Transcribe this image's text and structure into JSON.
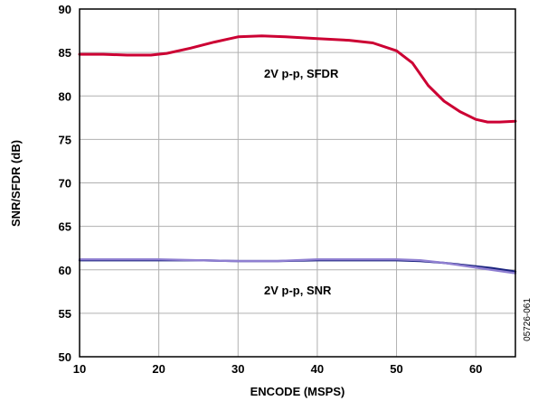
{
  "chart_data": {
    "type": "line",
    "title": "",
    "xlabel": "ENCODE (MSPS)",
    "ylabel": "SNR/SFDR (dB)",
    "xlim": [
      10,
      65
    ],
    "ylim": [
      50,
      90
    ],
    "x_ticks": [
      10,
      20,
      30,
      40,
      50,
      60
    ],
    "y_ticks": [
      50,
      55,
      60,
      65,
      70,
      75,
      80,
      85,
      90
    ],
    "grid": true,
    "figure_id": "05726-061",
    "series": [
      {
        "name": "2V p-p, SFDR",
        "color": "#cc0033",
        "points": [
          [
            10,
            84.8
          ],
          [
            13,
            84.8
          ],
          [
            16,
            84.7
          ],
          [
            19,
            84.7
          ],
          [
            21,
            84.9
          ],
          [
            24,
            85.5
          ],
          [
            27,
            86.2
          ],
          [
            30,
            86.8
          ],
          [
            33,
            86.9
          ],
          [
            36,
            86.8
          ],
          [
            40,
            86.6
          ],
          [
            44,
            86.4
          ],
          [
            47,
            86.1
          ],
          [
            50,
            85.2
          ],
          [
            52,
            83.8
          ],
          [
            54,
            81.2
          ],
          [
            56,
            79.4
          ],
          [
            58,
            78.2
          ],
          [
            60,
            77.3
          ],
          [
            61.5,
            77.0
          ],
          [
            63,
            77.0
          ],
          [
            65,
            77.1
          ]
        ]
      },
      {
        "name": "",
        "color": "#1a237e",
        "points": [
          [
            10,
            61.1
          ],
          [
            20,
            61.1
          ],
          [
            25,
            61.1
          ],
          [
            30,
            61.0
          ],
          [
            35,
            61.0
          ],
          [
            40,
            61.1
          ],
          [
            45,
            61.1
          ],
          [
            50,
            61.1
          ],
          [
            53,
            61.0
          ],
          [
            56,
            60.8
          ],
          [
            59,
            60.5
          ],
          [
            62,
            60.2
          ],
          [
            65,
            59.8
          ]
        ]
      },
      {
        "name": "2V p-p, SNR",
        "color": "#8f7fd1",
        "points": [
          [
            10,
            61.2
          ],
          [
            20,
            61.2
          ],
          [
            25,
            61.1
          ],
          [
            30,
            61.0
          ],
          [
            35,
            61.0
          ],
          [
            40,
            61.2
          ],
          [
            45,
            61.2
          ],
          [
            50,
            61.2
          ],
          [
            53,
            61.1
          ],
          [
            56,
            60.8
          ],
          [
            59,
            60.4
          ],
          [
            62,
            60.0
          ],
          [
            65,
            59.6
          ]
        ]
      }
    ]
  }
}
